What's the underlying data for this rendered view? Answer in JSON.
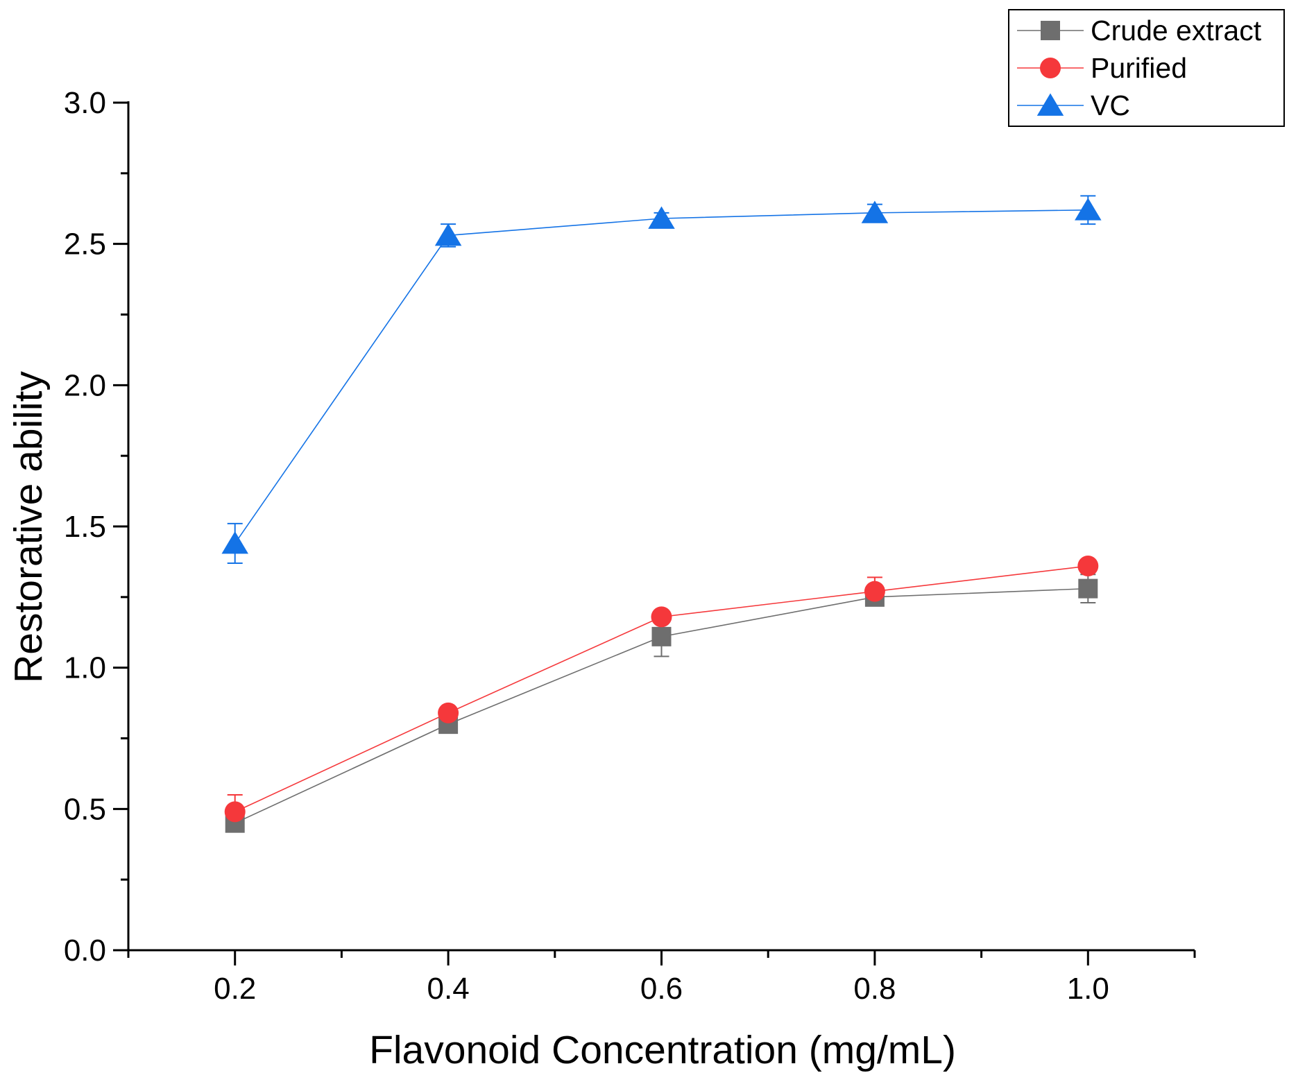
{
  "chart_data": {
    "type": "line",
    "title": "",
    "xlabel": "Flavonoid Concentration (mg/mL)",
    "ylabel": "Restorative ability",
    "x": [
      0.2,
      0.4,
      0.6,
      0.8,
      1.0
    ],
    "xlim": [
      0.1,
      1.1
    ],
    "ylim": [
      0,
      3
    ],
    "x_ticks": [
      "0.2",
      "0.4",
      "0.6",
      "0.8",
      "1.0"
    ],
    "y_ticks": [
      "0.0",
      "0.5",
      "1.0",
      "1.5",
      "2.0",
      "2.5",
      "3.0"
    ],
    "grid": false,
    "legend_position": "top-right",
    "series": [
      {
        "name": "Crude extract",
        "marker": "square",
        "color": "#6e6e6e",
        "values": [
          0.45,
          0.8,
          1.11,
          1.25,
          1.28
        ],
        "errors": [
          0.01,
          0.01,
          0.07,
          0.03,
          0.05
        ]
      },
      {
        "name": "Purified",
        "marker": "circle",
        "color": "#f5383b",
        "values": [
          0.49,
          0.84,
          1.18,
          1.27,
          1.36
        ],
        "errors": [
          0.06,
          0.01,
          0.01,
          0.05,
          0.02
        ]
      },
      {
        "name": "VC",
        "marker": "triangle",
        "color": "#1473e6",
        "values": [
          1.44,
          2.53,
          2.59,
          2.61,
          2.62
        ],
        "errors": [
          0.07,
          0.04,
          0.02,
          0.03,
          0.05
        ]
      }
    ]
  }
}
